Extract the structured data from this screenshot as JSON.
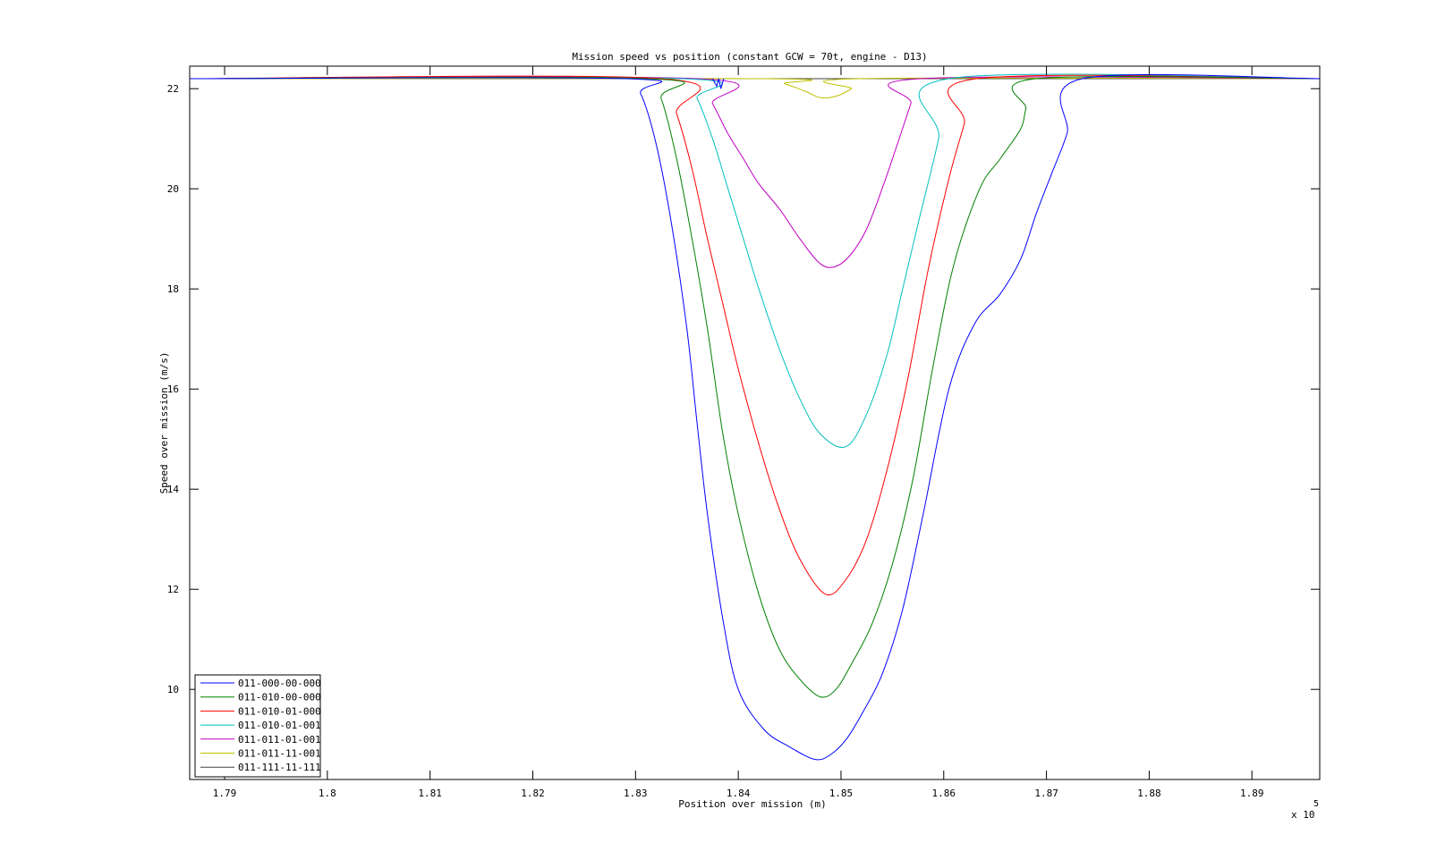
{
  "chart_data": {
    "type": "line",
    "title": "Mission speed vs position (constant GCW = 70t, engine - D13)",
    "xlabel": "Position over mission (m)",
    "ylabel": "Speed over mission (m/s)",
    "x_multiplier_label": "x 10",
    "x_multiplier_exponent": "5",
    "xlim": [
      1.7866,
      1.8966
    ],
    "ylim": [
      8.2,
      22.45
    ],
    "xticks": [
      1.79,
      1.8,
      1.81,
      1.82,
      1.83,
      1.84,
      1.85,
      1.86,
      1.87,
      1.88,
      1.89
    ],
    "xtick_labels": [
      "1.79",
      "1.8",
      "1.81",
      "1.82",
      "1.83",
      "1.84",
      "1.85",
      "1.86",
      "1.87",
      "1.88",
      "1.89"
    ],
    "yticks": [
      10,
      12,
      14,
      16,
      18,
      20,
      22
    ],
    "ytick_labels": [
      "10",
      "12",
      "14",
      "16",
      "18",
      "20",
      "22"
    ],
    "grid": false,
    "legend_position": "bottom-left",
    "series": [
      {
        "name": "011-000-00-000",
        "color": "#0000ff",
        "x": [
          1.7866,
          1.829,
          1.8305,
          1.832,
          1.8335,
          1.835,
          1.836,
          1.837,
          1.8385,
          1.84,
          1.8425,
          1.845,
          1.8475,
          1.849,
          1.8505,
          1.852,
          1.854,
          1.856,
          1.858,
          1.8605,
          1.863,
          1.8655,
          1.8675,
          1.869,
          1.8705,
          1.872,
          1.8735,
          1.8966
        ],
        "y": [
          22.2,
          22.2,
          21.9,
          20.9,
          19.3,
          17.2,
          15.3,
          13.5,
          11.4,
          10.0,
          9.2,
          8.85,
          8.6,
          8.7,
          9.0,
          9.5,
          10.3,
          11.6,
          13.5,
          16.0,
          17.3,
          17.9,
          18.6,
          19.5,
          20.3,
          21.1,
          22.2,
          22.2
        ]
      },
      {
        "name": "011-010-00-000",
        "color": "#008000",
        "x": [
          1.7866,
          1.8311,
          1.8325,
          1.834,
          1.8355,
          1.837,
          1.8385,
          1.84,
          1.842,
          1.844,
          1.846,
          1.848,
          1.8495,
          1.851,
          1.853,
          1.855,
          1.857,
          1.859,
          1.861,
          1.8635,
          1.8655,
          1.8675,
          1.868,
          1.869,
          1.8966
        ],
        "y": [
          22.2,
          22.2,
          21.8,
          20.6,
          19.0,
          17.2,
          15.1,
          13.5,
          11.9,
          10.8,
          10.2,
          9.85,
          10.0,
          10.5,
          11.3,
          12.5,
          14.2,
          16.5,
          18.5,
          20.0,
          20.6,
          21.2,
          21.6,
          22.2,
          22.2
        ]
      },
      {
        "name": "011-010-01-000",
        "color": "#ff0000",
        "x": [
          1.7866,
          1.8325,
          1.834,
          1.8355,
          1.837,
          1.8385,
          1.84,
          1.842,
          1.844,
          1.846,
          1.8485,
          1.8505,
          1.8525,
          1.8545,
          1.8565,
          1.8585,
          1.8605,
          1.862,
          1.8632,
          1.8966
        ],
        "y": [
          22.2,
          22.2,
          21.5,
          20.4,
          19.0,
          17.7,
          16.4,
          14.9,
          13.6,
          12.6,
          11.9,
          12.2,
          13.0,
          14.4,
          16.2,
          18.4,
          20.2,
          21.3,
          22.2,
          22.2
        ]
      },
      {
        "name": "011-010-01-001",
        "color": "#00bfbf",
        "x": [
          1.7866,
          1.8345,
          1.836,
          1.8375,
          1.839,
          1.8405,
          1.842,
          1.844,
          1.846,
          1.848,
          1.8505,
          1.8525,
          1.8545,
          1.856,
          1.8575,
          1.8595,
          1.8605,
          1.8966
        ],
        "y": [
          22.2,
          22.2,
          21.8,
          21.0,
          20.0,
          19.0,
          18.0,
          16.8,
          15.8,
          15.1,
          14.85,
          15.5,
          16.7,
          18.0,
          19.3,
          21.0,
          22.2,
          22.2
        ]
      },
      {
        "name": "011-011-01-001",
        "color": "#bf00bf",
        "x": [
          1.7866,
          1.836,
          1.8375,
          1.839,
          1.8405,
          1.842,
          1.844,
          1.846,
          1.848,
          1.8495,
          1.851,
          1.8525,
          1.854,
          1.8555,
          1.8568,
          1.8577,
          1.8966
        ],
        "y": [
          22.2,
          22.2,
          21.7,
          21.1,
          20.6,
          20.1,
          19.6,
          19.0,
          18.5,
          18.45,
          18.7,
          19.2,
          20.0,
          20.9,
          21.7,
          22.2,
          22.2
        ]
      },
      {
        "name": "011-011-11-001",
        "color": "#bfbf00",
        "x": [
          1.7866,
          1.8425,
          1.8445,
          1.8465,
          1.848,
          1.8495,
          1.851,
          1.8518,
          1.8966
        ],
        "y": [
          22.2,
          22.2,
          22.1,
          21.95,
          21.82,
          21.85,
          22.0,
          22.2,
          22.2
        ]
      },
      {
        "name": "011-111-11-111",
        "color": "#404040",
        "x": [
          1.7866,
          1.8966
        ],
        "y": [
          22.2,
          22.2
        ]
      }
    ],
    "annotations": {
      "blue_dip": {
        "x": [
          1.8375,
          1.8379,
          1.8381,
          1.8383,
          1.8386
        ],
        "y": [
          22.2,
          22.05,
          22.2,
          22.0,
          22.2
        ]
      }
    }
  }
}
